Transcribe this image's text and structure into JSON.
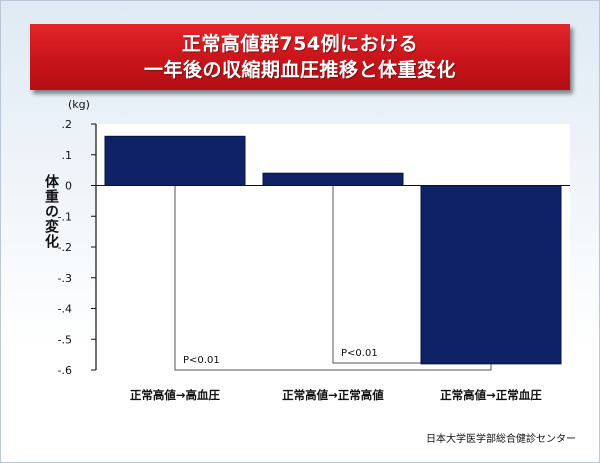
{
  "title": {
    "line1": "正常高値群754例における",
    "line2": "一年後の収縮期血圧推移と体重変化"
  },
  "colors": {
    "bar": "#0f2266",
    "bar_stroke": "#06123d",
    "title_bg": "#cc1a1f"
  },
  "chart_data": {
    "type": "bar",
    "categories": [
      "正常高値→高血圧",
      "正常高値→正常高値",
      "正常高値→正常血圧"
    ],
    "values": [
      0.16,
      0.04,
      -0.58
    ],
    "unit_label": "(kg)",
    "ylabel": "体重の変化",
    "ylim": [
      -0.6,
      0.2
    ],
    "yticks": [
      0.2,
      0.1,
      0,
      -0.1,
      -0.2,
      -0.3,
      -0.4,
      -0.5,
      -0.6
    ],
    "ytick_labels": [
      ".2",
      ".1",
      "0",
      "-.1",
      "-.2",
      "-.3",
      "-.4",
      "-.5",
      "-.6"
    ],
    "grid": false,
    "annotations": [
      {
        "label": "P<0.01",
        "from": 0,
        "to": 2
      },
      {
        "label": "P<0.01",
        "from": 1,
        "to": 2
      }
    ]
  },
  "credit": "日本大学医学部総合健診センター"
}
